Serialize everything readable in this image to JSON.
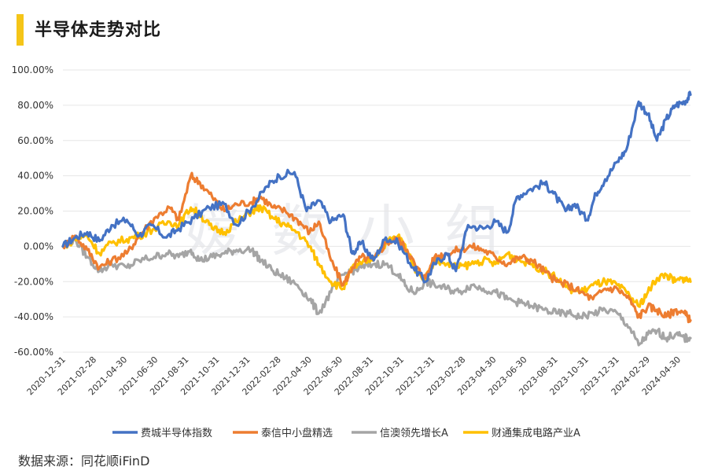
{
  "header": {
    "title": "半导体走势对比"
  },
  "watermark": "嫒数小组",
  "source": "数据来源：同花顺iFinD",
  "colors": {
    "s1": "#4472c4",
    "s2": "#ed7d31",
    "s3": "#a5a5a5",
    "s4": "#ffc000",
    "grid": "#e6e6e6",
    "bar": "#f5c518"
  },
  "chart_data": {
    "type": "line",
    "title": "半导体走势对比",
    "xlabel": "",
    "ylabel": "",
    "ylim": [
      -60,
      100
    ],
    "yticks": [
      -60,
      -40,
      -20,
      0,
      20,
      40,
      60,
      80,
      100
    ],
    "ytick_labels": [
      "-60.00%",
      "-40.00%",
      "-20.00%",
      "0.00%",
      "20.00%",
      "40.00%",
      "60.00%",
      "80.00%",
      "100.00%"
    ],
    "x_tick_labels": [
      "2020-12-31",
      "2021-02-28",
      "2021-04-30",
      "2021-06-30",
      "2021-08-31",
      "2021-10-31",
      "2021-12-31",
      "2022-02-28",
      "2022-04-30",
      "2022-06-30",
      "2022-08-31",
      "2022-10-31",
      "2022-12-31",
      "2023-02-28",
      "2023-04-30",
      "2023-06-30",
      "2023-08-31",
      "2023-10-31",
      "2023-12-31",
      "2024-02-29",
      "2024-04-30"
    ],
    "x_range": [
      0,
      41.2
    ],
    "legend_position": "bottom",
    "grid": true,
    "series": [
      {
        "name": "费城半导体指数",
        "color": "#4472c4",
        "points": [
          [
            0,
            0
          ],
          [
            0.8,
            5
          ],
          [
            1.6,
            8
          ],
          [
            2.4,
            3
          ],
          [
            3.2,
            12
          ],
          [
            4.2,
            15
          ],
          [
            5,
            6
          ],
          [
            5.8,
            12
          ],
          [
            6.8,
            5
          ],
          [
            7.6,
            10
          ],
          [
            8.6,
            16
          ],
          [
            9.6,
            22
          ],
          [
            10.6,
            24
          ],
          [
            11.4,
            12
          ],
          [
            12.4,
            22
          ],
          [
            13.4,
            34
          ],
          [
            14.2,
            40
          ],
          [
            15.2,
            42
          ],
          [
            16,
            20
          ],
          [
            16.8,
            26
          ],
          [
            17.6,
            14
          ],
          [
            18.4,
            18
          ],
          [
            19,
            -4
          ],
          [
            19.6,
            2
          ],
          [
            20.4,
            -8
          ],
          [
            21.2,
            5
          ],
          [
            22,
            2
          ],
          [
            23,
            -12
          ],
          [
            23.8,
            -20
          ],
          [
            24.4,
            -10
          ],
          [
            25.2,
            -4
          ],
          [
            25.8,
            -14
          ],
          [
            26.6,
            12
          ],
          [
            27.6,
            10
          ],
          [
            28.4,
            14
          ],
          [
            29.2,
            8
          ],
          [
            29.8,
            28
          ],
          [
            30.6,
            32
          ],
          [
            31.6,
            36
          ],
          [
            32.2,
            30
          ],
          [
            33,
            20
          ],
          [
            33.6,
            24
          ],
          [
            34.4,
            15
          ],
          [
            35,
            30
          ],
          [
            35.6,
            38
          ],
          [
            36.4,
            48
          ],
          [
            37,
            55
          ],
          [
            37.8,
            82
          ],
          [
            38.4,
            75
          ],
          [
            39,
            60
          ],
          [
            39.6,
            72
          ],
          [
            40.2,
            80
          ],
          [
            40.8,
            82
          ],
          [
            41.2,
            86
          ]
        ]
      },
      {
        "name": "泰信中小盘精选",
        "color": "#ed7d31",
        "points": [
          [
            0,
            0
          ],
          [
            0.8,
            6
          ],
          [
            1.6,
            -2
          ],
          [
            2.4,
            -12
          ],
          [
            3.2,
            -8
          ],
          [
            4.2,
            -4
          ],
          [
            5,
            6
          ],
          [
            6,
            16
          ],
          [
            7,
            22
          ],
          [
            7.6,
            15
          ],
          [
            8.4,
            40
          ],
          [
            9,
            36
          ],
          [
            9.8,
            28
          ],
          [
            10.6,
            20
          ],
          [
            11.4,
            24
          ],
          [
            12.4,
            25
          ],
          [
            13,
            28
          ],
          [
            13.8,
            22
          ],
          [
            14.6,
            20
          ],
          [
            15.4,
            15
          ],
          [
            16.2,
            8
          ],
          [
            16.8,
            14
          ],
          [
            17.6,
            -8
          ],
          [
            18.4,
            -22
          ],
          [
            19,
            -12
          ],
          [
            19.6,
            -6
          ],
          [
            20.4,
            -8
          ],
          [
            21.2,
            2
          ],
          [
            22,
            4
          ],
          [
            22.6,
            -2
          ],
          [
            23.2,
            -12
          ],
          [
            23.8,
            -18
          ],
          [
            24.4,
            -6
          ],
          [
            25.2,
            -4
          ],
          [
            26,
            -2
          ],
          [
            26.8,
            0
          ],
          [
            27.6,
            -2
          ],
          [
            28.4,
            -6
          ],
          [
            29.2,
            -10
          ],
          [
            30,
            -6
          ],
          [
            30.8,
            -8
          ],
          [
            31.6,
            -14
          ],
          [
            32.4,
            -20
          ],
          [
            33.2,
            -22
          ],
          [
            34,
            -26
          ],
          [
            34.8,
            -30
          ],
          [
            35.6,
            -24
          ],
          [
            36.4,
            -24
          ],
          [
            37.2,
            -30
          ],
          [
            37.8,
            -40
          ],
          [
            38.4,
            -34
          ],
          [
            39,
            -36
          ],
          [
            39.6,
            -40
          ],
          [
            40.2,
            -36
          ],
          [
            40.8,
            -38
          ],
          [
            41.2,
            -42
          ]
        ]
      },
      {
        "name": "信澳领先增长A",
        "color": "#a5a5a5",
        "points": [
          [
            0,
            0
          ],
          [
            0.8,
            4
          ],
          [
            1.6,
            -6
          ],
          [
            2.4,
            -14
          ],
          [
            3.2,
            -10
          ],
          [
            4.2,
            -12
          ],
          [
            5,
            -8
          ],
          [
            6,
            -6
          ],
          [
            6.8,
            -4
          ],
          [
            7.6,
            -6
          ],
          [
            8.4,
            -2
          ],
          [
            9,
            -8
          ],
          [
            9.8,
            -6
          ],
          [
            10.6,
            -4
          ],
          [
            11.4,
            -2
          ],
          [
            12.4,
            -2
          ],
          [
            13,
            -8
          ],
          [
            13.8,
            -14
          ],
          [
            14.6,
            -18
          ],
          [
            15.4,
            -22
          ],
          [
            16.2,
            -30
          ],
          [
            16.8,
            -38
          ],
          [
            17.6,
            -26
          ],
          [
            18.4,
            -16
          ],
          [
            19,
            -14
          ],
          [
            19.6,
            -12
          ],
          [
            20.4,
            -10
          ],
          [
            21.2,
            -10
          ],
          [
            22,
            -16
          ],
          [
            22.6,
            -24
          ],
          [
            23.2,
            -26
          ],
          [
            23.8,
            -20
          ],
          [
            24.4,
            -22
          ],
          [
            25.2,
            -24
          ],
          [
            26,
            -26
          ],
          [
            26.8,
            -22
          ],
          [
            27.6,
            -24
          ],
          [
            28.4,
            -26
          ],
          [
            29.2,
            -30
          ],
          [
            30,
            -32
          ],
          [
            30.8,
            -34
          ],
          [
            31.6,
            -36
          ],
          [
            32.4,
            -38
          ],
          [
            33.2,
            -38
          ],
          [
            34,
            -40
          ],
          [
            34.8,
            -38
          ],
          [
            35.6,
            -36
          ],
          [
            36.4,
            -38
          ],
          [
            37.2,
            -46
          ],
          [
            37.8,
            -56
          ],
          [
            38.4,
            -50
          ],
          [
            39,
            -48
          ],
          [
            39.6,
            -52
          ],
          [
            40.2,
            -50
          ],
          [
            40.8,
            -52
          ],
          [
            41.2,
            -52
          ]
        ]
      },
      {
        "name": "财通集成电路产业A",
        "color": "#ffc000",
        "points": [
          [
            0,
            0
          ],
          [
            0.8,
            4
          ],
          [
            1.6,
            6
          ],
          [
            2.4,
            -4
          ],
          [
            3.2,
            2
          ],
          [
            4.2,
            4
          ],
          [
            5,
            6
          ],
          [
            6,
            10
          ],
          [
            7,
            14
          ],
          [
            7.6,
            12
          ],
          [
            8.4,
            22
          ],
          [
            9,
            18
          ],
          [
            9.8,
            10
          ],
          [
            10.6,
            8
          ],
          [
            11.4,
            14
          ],
          [
            12.4,
            20
          ],
          [
            13,
            22
          ],
          [
            13.8,
            16
          ],
          [
            14.6,
            12
          ],
          [
            15.4,
            8
          ],
          [
            16.2,
            0
          ],
          [
            16.8,
            -10
          ],
          [
            17.6,
            -20
          ],
          [
            18.4,
            -24
          ],
          [
            19,
            -12
          ],
          [
            19.6,
            -10
          ],
          [
            20.4,
            -6
          ],
          [
            21.2,
            2
          ],
          [
            22,
            6
          ],
          [
            22.6,
            -2
          ],
          [
            23.2,
            -14
          ],
          [
            23.8,
            -18
          ],
          [
            24.4,
            -8
          ],
          [
            25.2,
            -10
          ],
          [
            26,
            -12
          ],
          [
            26.8,
            -10
          ],
          [
            27.6,
            -8
          ],
          [
            28.4,
            -10
          ],
          [
            29.2,
            -4
          ],
          [
            30,
            -8
          ],
          [
            30.8,
            -10
          ],
          [
            31.6,
            -14
          ],
          [
            32.4,
            -18
          ],
          [
            33.2,
            -24
          ],
          [
            34,
            -26
          ],
          [
            34.8,
            -22
          ],
          [
            35.6,
            -20
          ],
          [
            36.4,
            -22
          ],
          [
            37.2,
            -28
          ],
          [
            37.8,
            -34
          ],
          [
            38.4,
            -26
          ],
          [
            39,
            -18
          ],
          [
            39.6,
            -16
          ],
          [
            40.2,
            -20
          ],
          [
            40.8,
            -18
          ],
          [
            41.2,
            -20
          ]
        ]
      }
    ]
  }
}
